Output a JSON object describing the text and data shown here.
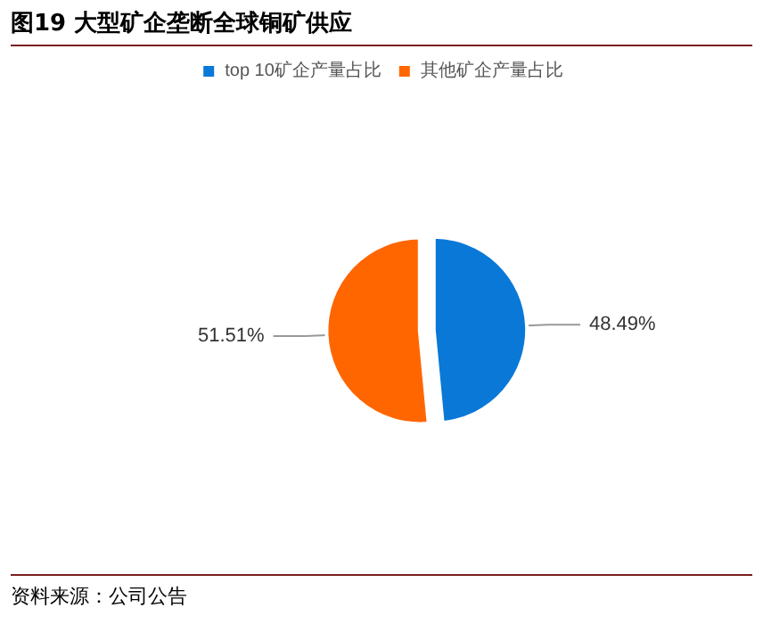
{
  "chart_data": {
    "type": "pie",
    "title": "图19 大型矿企垄断全球铜矿供应",
    "categories": [
      "top 10矿企产量占比",
      "其他矿企产量占比"
    ],
    "values": [
      48.49,
      51.51
    ],
    "colors": [
      "#0a78d7",
      "#ff6600"
    ],
    "value_labels": [
      "48.49%",
      "51.51%"
    ],
    "legend": "top",
    "annotations": [
      "资料来源：公司公告"
    ]
  }
}
